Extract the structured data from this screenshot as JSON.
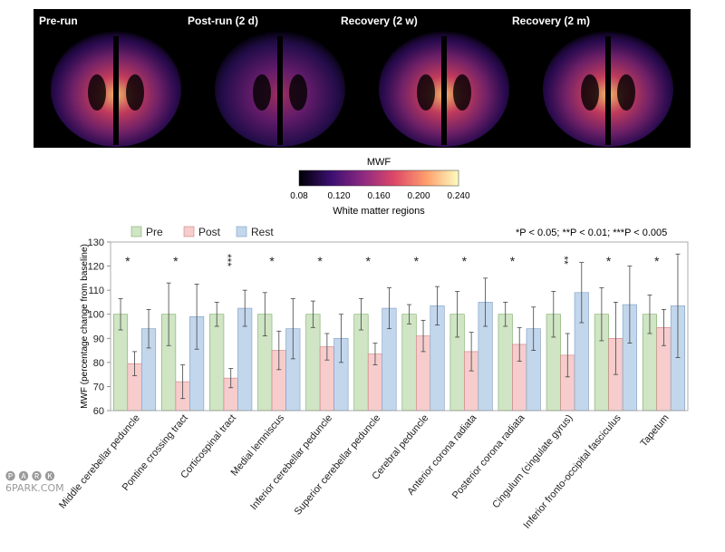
{
  "brain_panel": {
    "labels": [
      "Pre-run",
      "Post-run (2 d)",
      "Recovery (2 w)",
      "Recovery (2 m)"
    ]
  },
  "colorbar": {
    "title": "MWF",
    "ticks": [
      "0.08",
      "0.120",
      "0.160",
      "0.200",
      "0.240"
    ],
    "caption": "White matter regions",
    "colors": [
      "#000004",
      "#3b0f70",
      "#8c2981",
      "#de4968",
      "#fe9f6d",
      "#fcfdbf"
    ]
  },
  "significance_key": "*P < 0.05; **P < 0.01; ***P < 0.005",
  "watermark": {
    "line1": "🅟 🅐 🅡 🅚",
    "line2": "6PARK.COM"
  },
  "chart_data": {
    "type": "bar",
    "ylabel": "MWF (percentage change from baseline)",
    "xlabel": "",
    "ylim": [
      60,
      130
    ],
    "yticks": [
      60,
      70,
      80,
      90,
      100,
      110,
      120,
      130
    ],
    "grid": false,
    "legend_position": "top-left",
    "categories": [
      "Middle cerebellar peduncle",
      "Pontine crossing tract",
      "Corticospinal tract",
      "Medial lemniscus",
      "Inferior cerebellar peduncle",
      "Superior cerebellar peduncle",
      "Cerebral peduncle",
      "Anterior corona radiata",
      "Posterior corona radiata",
      "Cingulum (cingulate gyrus)",
      "Inferior fronto-occipital fasciculus",
      "Tapetum"
    ],
    "series": [
      {
        "name": "Pre",
        "color": "#cfe5c3",
        "edge": "#7da86a",
        "values": [
          100,
          100,
          100,
          100,
          100,
          100,
          100,
          100,
          100,
          100,
          100,
          100
        ],
        "err_up": [
          6.5,
          13,
          5,
          9,
          5.5,
          6.5,
          4,
          9.5,
          5,
          9.5,
          11,
          8
        ],
        "err_down": [
          6.5,
          13,
          5,
          9,
          5.5,
          6.5,
          4,
          9.5,
          5,
          9.5,
          11,
          8
        ]
      },
      {
        "name": "Post",
        "color": "#f6cccc",
        "edge": "#cc7f7f",
        "values": [
          79.5,
          72,
          73.5,
          85,
          86.5,
          83.5,
          91,
          84.5,
          87.5,
          83,
          90,
          94.5
        ],
        "err_up": [
          5,
          7,
          4,
          8,
          5.5,
          4.5,
          6.5,
          8,
          7,
          9,
          15,
          7.5
        ],
        "err_down": [
          5,
          7,
          4,
          8,
          5.5,
          4.5,
          6.5,
          8,
          7,
          9,
          15,
          7.5
        ]
      },
      {
        "name": "Rest",
        "color": "#c3d7ec",
        "edge": "#7d9bc1",
        "values": [
          94,
          99,
          102.5,
          94,
          90,
          102.5,
          103.5,
          105,
          94,
          109,
          104,
          103.5
        ],
        "err_up": [
          8,
          13.5,
          7.5,
          12.5,
          10,
          8.5,
          8,
          10,
          9,
          12.5,
          16,
          21.5
        ],
        "err_down": [
          8,
          13.5,
          7.5,
          12.5,
          10,
          8.5,
          8,
          10,
          9,
          12.5,
          16,
          21.5
        ]
      }
    ],
    "annotations": [
      "*",
      "*",
      "***",
      "*",
      "*",
      "*",
      "*",
      "*",
      "*",
      "**",
      "*",
      "*"
    ]
  }
}
